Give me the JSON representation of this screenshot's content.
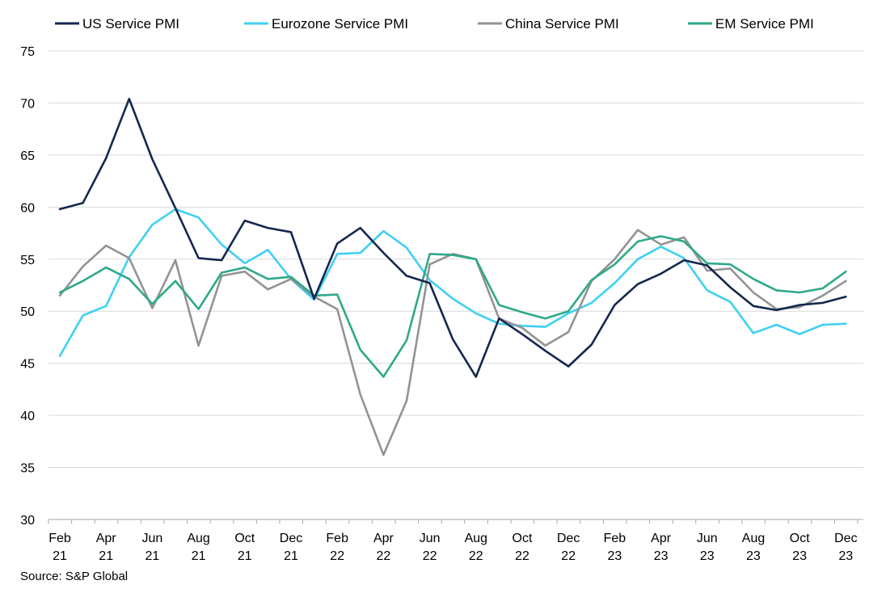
{
  "chart_data": {
    "type": "line",
    "title": "",
    "xlabel": "",
    "ylabel": "",
    "ylim": [
      30,
      75
    ],
    "yticks": [
      30,
      35,
      40,
      45,
      50,
      55,
      60,
      65,
      70,
      75
    ],
    "grid": "horizontal",
    "legend_position": "top",
    "x_tick_labels": [
      {
        "month": "Feb",
        "year": "21"
      },
      {
        "month": "Apr",
        "year": "21"
      },
      {
        "month": "Jun",
        "year": "21"
      },
      {
        "month": "Aug",
        "year": "21"
      },
      {
        "month": "Oct",
        "year": "21"
      },
      {
        "month": "Dec",
        "year": "21"
      },
      {
        "month": "Feb",
        "year": "22"
      },
      {
        "month": "Apr",
        "year": "22"
      },
      {
        "month": "Jun",
        "year": "22"
      },
      {
        "month": "Aug",
        "year": "22"
      },
      {
        "month": "Oct",
        "year": "22"
      },
      {
        "month": "Dec",
        "year": "22"
      },
      {
        "month": "Feb",
        "year": "23"
      },
      {
        "month": "Apr",
        "year": "23"
      },
      {
        "month": "Jun",
        "year": "23"
      },
      {
        "month": "Aug",
        "year": "23"
      },
      {
        "month": "Oct",
        "year": "23"
      },
      {
        "month": "Dec",
        "year": "23"
      }
    ],
    "x": [
      "2021-02",
      "2021-03",
      "2021-04",
      "2021-05",
      "2021-06",
      "2021-07",
      "2021-08",
      "2021-09",
      "2021-10",
      "2021-11",
      "2021-12",
      "2022-01",
      "2022-02",
      "2022-03",
      "2022-04",
      "2022-05",
      "2022-06",
      "2022-07",
      "2022-08",
      "2022-09",
      "2022-10",
      "2022-11",
      "2022-12",
      "2023-01",
      "2023-02",
      "2023-03",
      "2023-04",
      "2023-05",
      "2023-06",
      "2023-07",
      "2023-08",
      "2023-09",
      "2023-10",
      "2023-11",
      "2023-12"
    ],
    "series": [
      {
        "name": "US Service PMI",
        "color": "#14274e",
        "values": [
          59.8,
          60.4,
          64.7,
          70.4,
          64.6,
          59.9,
          55.1,
          54.9,
          58.7,
          58.0,
          57.6,
          51.2,
          56.5,
          58.0,
          55.6,
          53.4,
          52.7,
          47.3,
          43.7,
          49.3,
          47.8,
          46.2,
          44.7,
          46.8,
          50.6,
          52.6,
          53.6,
          54.9,
          54.4,
          52.3,
          50.5,
          50.1,
          50.6,
          50.8,
          51.4
        ]
      },
      {
        "name": "Eurozone Service PMI",
        "color": "#3fd0f2",
        "values": [
          45.7,
          49.6,
          50.5,
          55.2,
          58.3,
          59.8,
          59.0,
          56.4,
          54.6,
          55.9,
          53.1,
          51.1,
          55.5,
          55.6,
          57.7,
          56.1,
          53.0,
          51.2,
          49.8,
          48.8,
          48.6,
          48.5,
          49.8,
          50.8,
          52.7,
          55.0,
          56.2,
          55.1,
          52.0,
          50.9,
          47.9,
          48.7,
          47.8,
          48.7,
          48.8
        ]
      },
      {
        "name": "China Service PMI",
        "color": "#939393",
        "values": [
          51.5,
          54.3,
          56.3,
          55.1,
          50.3,
          54.9,
          46.7,
          53.4,
          53.8,
          52.1,
          53.1,
          51.4,
          50.2,
          42.0,
          36.2,
          41.4,
          54.5,
          55.5,
          55.0,
          49.3,
          48.4,
          46.7,
          48.0,
          52.9,
          55.0,
          57.8,
          56.4,
          57.1,
          53.9,
          54.1,
          51.8,
          50.2,
          50.4,
          51.5,
          52.9
        ]
      },
      {
        "name": "EM Service PMI",
        "color": "#2ea98a",
        "values": [
          51.8,
          52.9,
          54.2,
          53.1,
          50.7,
          52.9,
          50.2,
          53.7,
          54.2,
          53.1,
          53.3,
          51.5,
          51.6,
          46.3,
          43.7,
          47.2,
          55.5,
          55.4,
          55.0,
          50.6,
          49.9,
          49.3,
          50.0,
          53.0,
          54.5,
          56.7,
          57.2,
          56.7,
          54.6,
          54.5,
          53.1,
          52.0,
          51.8,
          52.2,
          53.8
        ]
      }
    ]
  },
  "source": "Source: S&P Global"
}
